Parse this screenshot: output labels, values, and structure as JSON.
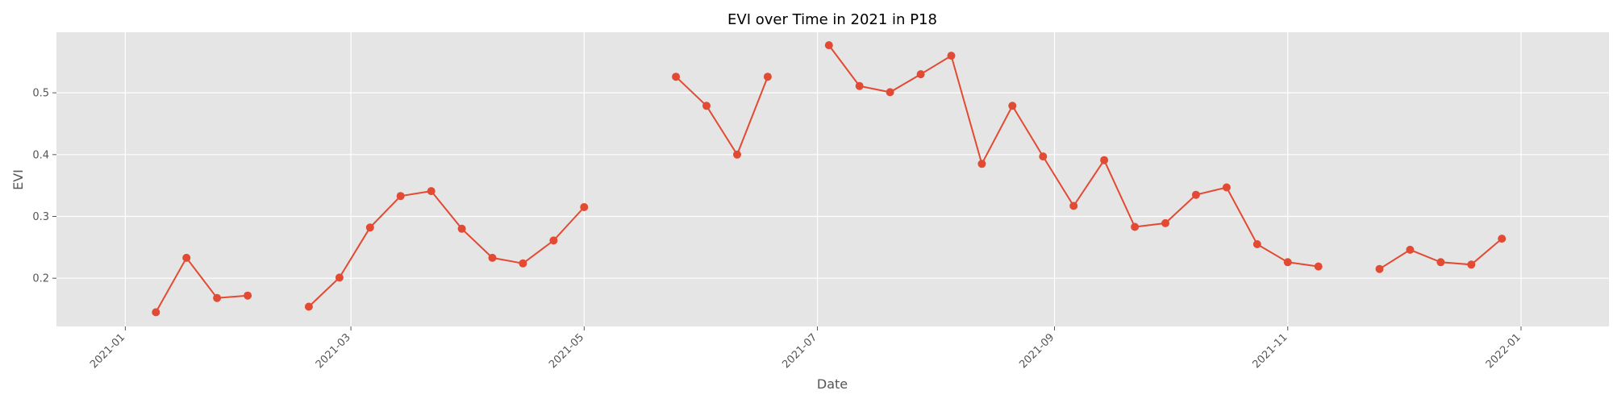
{
  "chart_data": {
    "type": "line",
    "title": "EVI over Time in 2021 in P18",
    "xlabel": "Date",
    "ylabel": "EVI",
    "grid": true,
    "legend": "none",
    "xlim": [
      "2020-12-14",
      "2022-01-24"
    ],
    "ylim": [
      0.122,
      0.598
    ],
    "x_ticks": [
      "2021-01",
      "2021-03",
      "2021-05",
      "2021-07",
      "2021-09",
      "2021-11",
      "2022-01"
    ],
    "y_ticks": [
      "0.2",
      "0.3",
      "0.4",
      "0.5"
    ],
    "colors": {
      "series": "#e24a33",
      "plot_background": "#e5e5e5",
      "grid": "#ffffff",
      "text": "#555555"
    },
    "series": [
      {
        "segments": [
          [
            {
              "x": "2021-01-09",
              "y": 0.145
            },
            {
              "x": "2021-01-17",
              "y": 0.233
            },
            {
              "x": "2021-01-25",
              "y": 0.168
            },
            {
              "x": "2021-02-02",
              "y": 0.172
            }
          ],
          [
            {
              "x": "2021-02-18",
              "y": 0.154
            },
            {
              "x": "2021-02-26",
              "y": 0.201
            },
            {
              "x": "2021-03-06",
              "y": 0.282
            },
            {
              "x": "2021-03-14",
              "y": 0.333
            },
            {
              "x": "2021-03-22",
              "y": 0.341
            },
            {
              "x": "2021-03-30",
              "y": 0.28
            },
            {
              "x": "2021-04-07",
              "y": 0.233
            },
            {
              "x": "2021-04-15",
              "y": 0.224
            },
            {
              "x": "2021-04-23",
              "y": 0.261
            },
            {
              "x": "2021-05-01",
              "y": 0.315
            }
          ],
          [
            {
              "x": "2021-05-25",
              "y": 0.526
            },
            {
              "x": "2021-06-02",
              "y": 0.479
            },
            {
              "x": "2021-06-10",
              "y": 0.4
            },
            {
              "x": "2021-06-18",
              "y": 0.526
            }
          ],
          [
            {
              "x": "2021-07-04",
              "y": 0.577
            },
            {
              "x": "2021-07-12",
              "y": 0.511
            },
            {
              "x": "2021-07-20",
              "y": 0.501
            },
            {
              "x": "2021-07-28",
              "y": 0.53
            },
            {
              "x": "2021-08-05",
              "y": 0.56
            },
            {
              "x": "2021-08-13",
              "y": 0.385
            },
            {
              "x": "2021-08-21",
              "y": 0.479
            },
            {
              "x": "2021-08-29",
              "y": 0.397
            },
            {
              "x": "2021-09-06",
              "y": 0.317
            },
            {
              "x": "2021-09-14",
              "y": 0.391
            },
            {
              "x": "2021-09-22",
              "y": 0.283
            },
            {
              "x": "2021-09-30",
              "y": 0.289
            },
            {
              "x": "2021-10-08",
              "y": 0.335
            },
            {
              "x": "2021-10-16",
              "y": 0.347
            },
            {
              "x": "2021-10-24",
              "y": 0.255
            },
            {
              "x": "2021-11-01",
              "y": 0.226
            },
            {
              "x": "2021-11-09",
              "y": 0.219
            }
          ],
          [
            {
              "x": "2021-11-25",
              "y": 0.215
            },
            {
              "x": "2021-12-03",
              "y": 0.246
            },
            {
              "x": "2021-12-11",
              "y": 0.226
            },
            {
              "x": "2021-12-19",
              "y": 0.222
            },
            {
              "x": "2021-12-27",
              "y": 0.264
            }
          ]
        ]
      }
    ]
  }
}
